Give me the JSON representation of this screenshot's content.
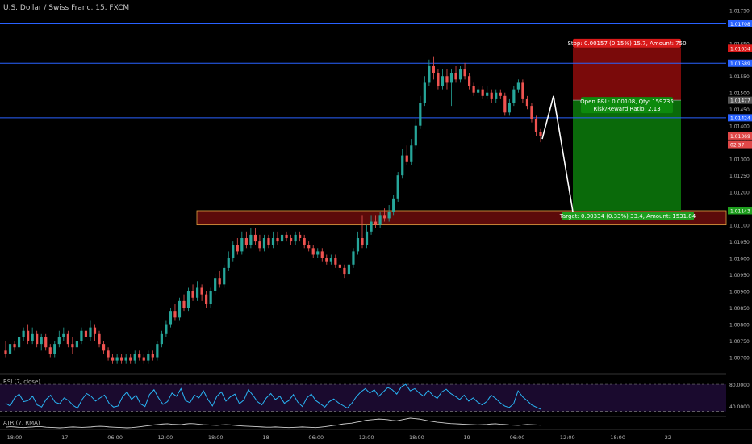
{
  "title": "U.S. Dollar / Swiss Franc, 15, FXCM",
  "chart_data": [
    {
      "type": "candlestick",
      "title": "U.S. Dollar / Swiss Franc, 15, FXCM",
      "symbol": "USDCHF",
      "interval": "15",
      "ylim": [
        1.0065,
        1.0178
      ],
      "y_ticks": [
        "1.01750",
        "1.01650",
        "1.01550",
        "1.01500",
        "1.01450",
        "1.01400",
        "1.01350",
        "1.01300",
        "1.01250",
        "1.01200",
        "1.01150",
        "1.01100",
        "1.01050",
        "1.01000",
        "1.00950",
        "1.00900",
        "1.00850",
        "1.00800",
        "1.00750",
        "1.00700"
      ],
      "x_ticks": [
        "18:00",
        "17",
        "06:00",
        "12:00",
        "18:00",
        "18",
        "06:00",
        "12:00",
        "18:00",
        "19",
        "06:00",
        "12:00",
        "18:00",
        "22"
      ],
      "price_lines": [
        {
          "value": 1.01708,
          "label": "1.01708",
          "color": "#2962ff"
        },
        {
          "value": 1.01589,
          "label": "1.01589",
          "color": "#2962ff"
        },
        {
          "value": 1.01424,
          "label": "1.01424",
          "color": "#2962ff"
        }
      ],
      "axis_badges": [
        {
          "value": 1.01634,
          "label": "1.01634",
          "color": "#d91a1a"
        },
        {
          "value": 1.01477,
          "label": "1.01477",
          "color": "#555555"
        },
        {
          "value": 1.01369,
          "label": "1.01369",
          "color": "#e04848"
        },
        {
          "value": 1.01343,
          "label": "02:37",
          "color": "#e04848"
        },
        {
          "value": 1.01143,
          "label": "1.01143",
          "color": "#1e9e1e"
        }
      ],
      "zone": {
        "top": 1.01143,
        "bottom": 1.011,
        "color": "#5c0a0a"
      },
      "position": {
        "side": "short",
        "entry": 1.01477,
        "stop": 1.01634,
        "target": 1.01143,
        "stop_label": "Stop: 0.00157 (0.15%) 15.7, Amount: 750",
        "target_label": "Target: 0.00334 (0.33%) 33.4, Amount: 1531.84",
        "pnl_label": "Open P&L: 0.00108, Qty: 159235",
        "rr_label": "Risk/Reward Ratio: 2.13"
      },
      "projection": [
        1.0136,
        1.0149,
        1.0114
      ],
      "candles": [
        [
          1.0072,
          1.0071,
          1.0075,
          1.007
        ],
        [
          1.0071,
          1.0074,
          1.0076,
          1.007
        ],
        [
          1.0074,
          1.0073,
          1.0075,
          1.0072
        ],
        [
          1.0073,
          1.0076,
          1.0077,
          1.0072
        ],
        [
          1.0076,
          1.0078,
          1.0079,
          1.0075
        ],
        [
          1.0078,
          1.0075,
          1.008,
          1.0074
        ],
        [
          1.0075,
          1.0077,
          1.0079,
          1.0074
        ],
        [
          1.0077,
          1.0074,
          1.0078,
          1.0073
        ],
        [
          1.0074,
          1.0076,
          1.0077,
          1.0072
        ],
        [
          1.0076,
          1.0073,
          1.0077,
          1.0072
        ],
        [
          1.0073,
          1.0071,
          1.0074,
          1.007
        ],
        [
          1.0071,
          1.0074,
          1.0075,
          1.007
        ],
        [
          1.0074,
          1.0076,
          1.0078,
          1.0073
        ],
        [
          1.0076,
          1.0077,
          1.0079,
          1.0075
        ],
        [
          1.0077,
          1.0074,
          1.0078,
          1.0073
        ],
        [
          1.0074,
          1.0073,
          1.0076,
          1.0071
        ],
        [
          1.0073,
          1.0075,
          1.0076,
          1.0072
        ],
        [
          1.0075,
          1.0078,
          1.0079,
          1.0074
        ],
        [
          1.0078,
          1.0076,
          1.008,
          1.0075
        ],
        [
          1.0076,
          1.0079,
          1.0081,
          1.0075
        ],
        [
          1.0079,
          1.0077,
          1.008,
          1.0075
        ],
        [
          1.0077,
          1.0074,
          1.0078,
          1.0073
        ],
        [
          1.0074,
          1.0072,
          1.0075,
          1.0071
        ],
        [
          1.0072,
          1.007,
          1.0073,
          1.0069
        ],
        [
          1.007,
          1.0069,
          1.0071,
          1.0068
        ],
        [
          1.0069,
          1.007,
          1.0071,
          1.0068
        ],
        [
          1.007,
          1.0069,
          1.0071,
          1.0068
        ],
        [
          1.0069,
          1.007,
          1.0071,
          1.0068
        ],
        [
          1.007,
          1.0069,
          1.0071,
          1.0068
        ],
        [
          1.0069,
          1.0071,
          1.0072,
          1.0068
        ],
        [
          1.0071,
          1.007,
          1.0072,
          1.0069
        ],
        [
          1.007,
          1.0069,
          1.0071,
          1.0068
        ],
        [
          1.0069,
          1.0071,
          1.0072,
          1.0068
        ],
        [
          1.0071,
          1.007,
          1.0072,
          1.0069
        ],
        [
          1.007,
          1.0074,
          1.0075,
          1.0069
        ],
        [
          1.0074,
          1.0077,
          1.0078,
          1.0073
        ],
        [
          1.0077,
          1.008,
          1.0081,
          1.0076
        ],
        [
          1.008,
          1.0084,
          1.0085,
          1.0079
        ],
        [
          1.0084,
          1.0082,
          1.0086,
          1.0081
        ],
        [
          1.0082,
          1.0087,
          1.0088,
          1.0081
        ],
        [
          1.0087,
          1.0085,
          1.0089,
          1.0084
        ],
        [
          1.0085,
          1.009,
          1.0091,
          1.0084
        ],
        [
          1.009,
          1.0088,
          1.0092,
          1.0087
        ],
        [
          1.0088,
          1.0091,
          1.0093,
          1.0087
        ],
        [
          1.0091,
          1.0089,
          1.0092,
          1.0087
        ],
        [
          1.0089,
          1.0086,
          1.009,
          1.0085
        ],
        [
          1.0086,
          1.009,
          1.0091,
          1.0085
        ],
        [
          1.009,
          1.0094,
          1.0095,
          1.0089
        ],
        [
          1.0094,
          1.0092,
          1.0096,
          1.0091
        ],
        [
          1.0092,
          1.0097,
          1.0098,
          1.0091
        ],
        [
          1.0097,
          1.01,
          1.0102,
          1.0096
        ],
        [
          1.01,
          1.0104,
          1.0105,
          1.0099
        ],
        [
          1.0104,
          1.0102,
          1.0106,
          1.0101
        ],
        [
          1.0102,
          1.0106,
          1.0108,
          1.0101
        ],
        [
          1.0106,
          1.0104,
          1.0108,
          1.0103
        ],
        [
          1.0104,
          1.0107,
          1.0109,
          1.0103
        ],
        [
          1.0107,
          1.0105,
          1.0109,
          1.0104
        ],
        [
          1.0105,
          1.0103,
          1.0107,
          1.0102
        ],
        [
          1.0103,
          1.0106,
          1.0107,
          1.0102
        ],
        [
          1.0106,
          1.0104,
          1.0107,
          1.0103
        ],
        [
          1.0104,
          1.0106,
          1.0108,
          1.0103
        ],
        [
          1.0106,
          1.0105,
          1.0108,
          1.0104
        ],
        [
          1.0105,
          1.0107,
          1.0108,
          1.0104
        ],
        [
          1.0107,
          1.0106,
          1.0108,
          1.0105
        ],
        [
          1.0106,
          1.0105,
          1.0107,
          1.0104
        ],
        [
          1.0105,
          1.0107,
          1.0108,
          1.0104
        ],
        [
          1.0107,
          1.0106,
          1.0108,
          1.0105
        ],
        [
          1.0106,
          1.0104,
          1.0107,
          1.0103
        ],
        [
          1.0104,
          1.0103,
          1.0105,
          1.0102
        ],
        [
          1.0103,
          1.0101,
          1.0104,
          1.01
        ],
        [
          1.0101,
          1.0102,
          1.0103,
          1.01
        ],
        [
          1.0102,
          1.01,
          1.0103,
          1.0099
        ],
        [
          1.01,
          1.0099,
          1.0101,
          1.0098
        ],
        [
          1.0099,
          1.01,
          1.0101,
          1.0098
        ],
        [
          1.01,
          1.0098,
          1.0101,
          1.0097
        ],
        [
          1.0098,
          1.0097,
          1.0099,
          1.0096
        ],
        [
          1.0097,
          1.0095,
          1.0098,
          1.0094
        ],
        [
          1.0095,
          1.0098,
          1.0099,
          1.0094
        ],
        [
          1.0098,
          1.0102,
          1.0103,
          1.0097
        ],
        [
          1.0102,
          1.0106,
          1.0108,
          1.0101
        ],
        [
          1.0106,
          1.0104,
          1.0113,
          1.0103
        ],
        [
          1.0104,
          1.0108,
          1.011,
          1.0103
        ],
        [
          1.0108,
          1.0111,
          1.0113,
          1.0107
        ],
        [
          1.0111,
          1.011,
          1.0113,
          1.0109
        ],
        [
          1.011,
          1.0113,
          1.0114,
          1.0109
        ],
        [
          1.0113,
          1.0112,
          1.0115,
          1.0111
        ],
        [
          1.0112,
          1.0114,
          1.0116,
          1.0111
        ],
        [
          1.0114,
          1.0118,
          1.0119,
          1.0113
        ],
        [
          1.0118,
          1.0125,
          1.0126,
          1.0117
        ],
        [
          1.0125,
          1.0131,
          1.0133,
          1.0124
        ],
        [
          1.0131,
          1.0129,
          1.0134,
          1.0128
        ],
        [
          1.0129,
          1.0134,
          1.0136,
          1.0128
        ],
        [
          1.0134,
          1.014,
          1.0142,
          1.0133
        ],
        [
          1.014,
          1.0147,
          1.0149,
          1.0139
        ],
        [
          1.0147,
          1.0153,
          1.0155,
          1.0146
        ],
        [
          1.0153,
          1.0158,
          1.016,
          1.0152
        ],
        [
          1.0158,
          1.0156,
          1.0161,
          1.0154
        ],
        [
          1.0156,
          1.0152,
          1.0157,
          1.0151
        ],
        [
          1.0152,
          1.0155,
          1.0157,
          1.0151
        ],
        [
          1.0155,
          1.0153,
          1.0157,
          1.0151
        ],
        [
          1.0153,
          1.0156,
          1.0157,
          1.0146
        ],
        [
          1.0156,
          1.0154,
          1.0158,
          1.0153
        ],
        [
          1.0154,
          1.0157,
          1.0158,
          1.0153
        ],
        [
          1.0157,
          1.0155,
          1.0159,
          1.0154
        ],
        [
          1.0155,
          1.0152,
          1.0156,
          1.0151
        ],
        [
          1.0152,
          1.015,
          1.0153,
          1.0149
        ],
        [
          1.015,
          1.0151,
          1.0152,
          1.0149
        ],
        [
          1.0151,
          1.0149,
          1.0152,
          1.0148
        ],
        [
          1.0149,
          1.015,
          1.0152,
          1.0148
        ],
        [
          1.015,
          1.0148,
          1.0151,
          1.0147
        ],
        [
          1.0148,
          1.015,
          1.0151,
          1.0147
        ],
        [
          1.015,
          1.0149,
          1.0151,
          1.0148
        ],
        [
          1.0149,
          1.0144,
          1.015,
          1.0143
        ],
        [
          1.0144,
          1.0147,
          1.0148,
          1.0143
        ],
        [
          1.0147,
          1.0151,
          1.0152,
          1.0146
        ],
        [
          1.0151,
          1.0153,
          1.0154,
          1.015
        ],
        [
          1.0153,
          1.0148,
          1.0154,
          1.0147
        ],
        [
          1.0148,
          1.0146,
          1.0149,
          1.0145
        ],
        [
          1.0146,
          1.0142,
          1.0147,
          1.0141
        ],
        [
          1.0142,
          1.0138,
          1.0143,
          1.0137
        ],
        [
          1.0138,
          1.0137,
          1.0139,
          1.0135
        ]
      ]
    },
    {
      "type": "line",
      "title": "RSI (7, close)",
      "ylim": [
        25,
        95
      ],
      "y_ticks": [
        "80.0000",
        "40.0000"
      ],
      "bands": [
        80,
        30
      ],
      "values": [
        45,
        40,
        55,
        62,
        48,
        50,
        58,
        42,
        38,
        52,
        60,
        47,
        44,
        55,
        50,
        41,
        36,
        52,
        63,
        58,
        49,
        55,
        60,
        45,
        38,
        40,
        57,
        66,
        52,
        60,
        44,
        39,
        61,
        70,
        55,
        43,
        48,
        64,
        58,
        72,
        50,
        46,
        60,
        55,
        68,
        52,
        40,
        58,
        66,
        49,
        57,
        62,
        44,
        51,
        70,
        60,
        48,
        42,
        55,
        63,
        52,
        58,
        45,
        50,
        61,
        47,
        39,
        55,
        62,
        50,
        44,
        38,
        48,
        53,
        46,
        41,
        36,
        45,
        57,
        66,
        72,
        64,
        70,
        58,
        66,
        74,
        70,
        62,
        75,
        80,
        68,
        72,
        64,
        58,
        69,
        60,
        54,
        66,
        71,
        63,
        58,
        52,
        60,
        49,
        55,
        47,
        42,
        48,
        60,
        54,
        46,
        40,
        37,
        44,
        68,
        57,
        50,
        42,
        38,
        34
      ]
    },
    {
      "type": "line",
      "title": "ATR (7, RMA)",
      "values": [
        0.3,
        0.32,
        0.31,
        0.29,
        0.28,
        0.3,
        0.31,
        0.33,
        0.32,
        0.3,
        0.29,
        0.28,
        0.27,
        0.28,
        0.3,
        0.31,
        0.3,
        0.29,
        0.3,
        0.31,
        0.33,
        0.34,
        0.33,
        0.31,
        0.3,
        0.29,
        0.28,
        0.27,
        0.28,
        0.3,
        0.32,
        0.35,
        0.37,
        0.4,
        0.42,
        0.44,
        0.45,
        0.43,
        0.42,
        0.41,
        0.44,
        0.46,
        0.45,
        0.43,
        0.41,
        0.4,
        0.39,
        0.38,
        0.4,
        0.41,
        0.4,
        0.38,
        0.36,
        0.35,
        0.34,
        0.33,
        0.32,
        0.31,
        0.3,
        0.3,
        0.31,
        0.3,
        0.29,
        0.28,
        0.29,
        0.3,
        0.31,
        0.3,
        0.29,
        0.28,
        0.3,
        0.32,
        0.35,
        0.38,
        0.4,
        0.44,
        0.46,
        0.48,
        0.52,
        0.55,
        0.6,
        0.62,
        0.64,
        0.66,
        0.65,
        0.63,
        0.6,
        0.58,
        0.62,
        0.66,
        0.7,
        0.68,
        0.66,
        0.62,
        0.58,
        0.55,
        0.52,
        0.5,
        0.48,
        0.46,
        0.45,
        0.44,
        0.43,
        0.42,
        0.41,
        0.4,
        0.41,
        0.42,
        0.44,
        0.45,
        0.43,
        0.42,
        0.4,
        0.39,
        0.38,
        0.4,
        0.42,
        0.41,
        0.4,
        0.39
      ]
    }
  ]
}
